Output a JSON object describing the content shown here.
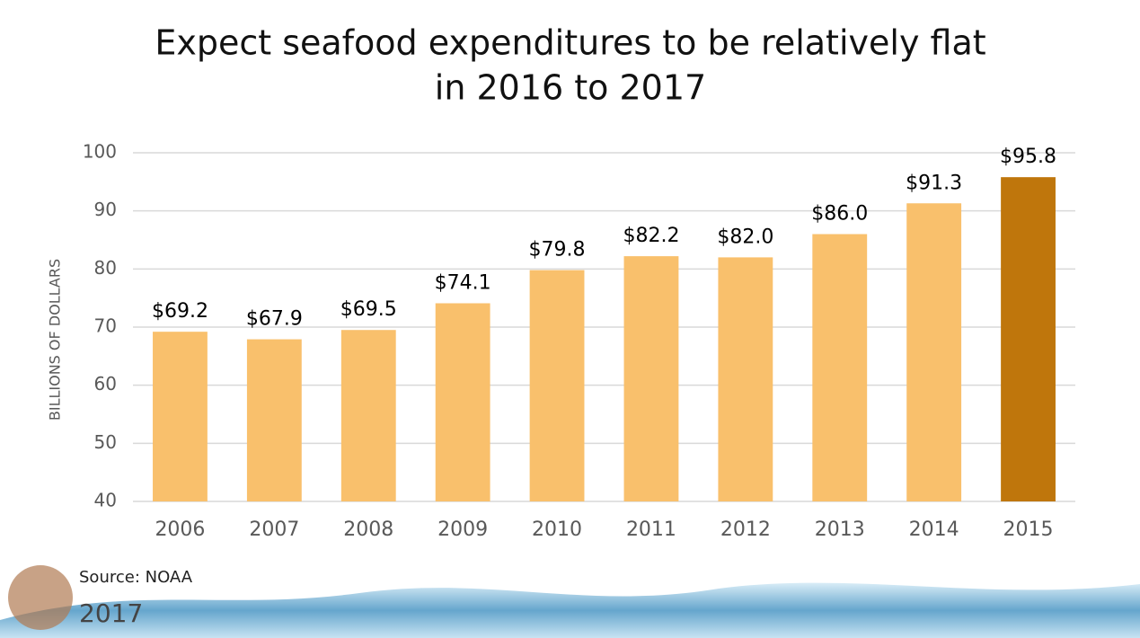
{
  "chart_data": {
    "type": "bar",
    "title": [
      "Expect seafood expenditures to be relatively flat",
      "in 2016 to 2017"
    ],
    "ylabel": "BILLIONS OF DOLLARS",
    "categories": [
      "2006",
      "2007",
      "2008",
      "2009",
      "2010",
      "2011",
      "2012",
      "2013",
      "2014",
      "2015"
    ],
    "values": [
      69.2,
      67.9,
      69.5,
      74.1,
      79.8,
      82.2,
      82.0,
      86.0,
      91.3,
      95.8
    ],
    "value_labels": [
      "$69.2",
      "$67.9",
      "$69.5",
      "$74.1",
      "$79.8",
      "$82.2",
      "$82.0",
      "$86.0",
      "$91.3",
      "$95.8"
    ],
    "colors": [
      "#f9c06c",
      "#f9c06c",
      "#f9c06c",
      "#f9c06c",
      "#f9c06c",
      "#f9c06c",
      "#f9c06c",
      "#f9c06c",
      "#f9c06c",
      "#bf760c"
    ],
    "ylim": [
      40,
      100
    ],
    "yticks": [
      40,
      50,
      60,
      70,
      80,
      90,
      100
    ],
    "grid": true
  },
  "footer": {
    "source": "Source: NOAA",
    "year": "2017"
  }
}
